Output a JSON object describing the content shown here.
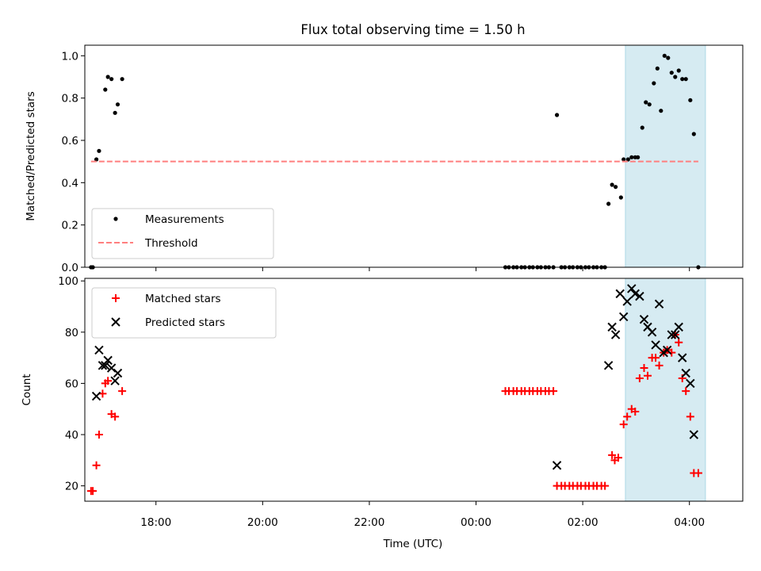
{
  "chart_data": {
    "type": "scatter",
    "title": "Flux total observing time = 1.50 h",
    "xlabel": "Time (UTC)",
    "x_ticks": [
      "18:00",
      "20:00",
      "22:00",
      "00:00",
      "02:00",
      "04:00"
    ],
    "xlim": [
      "16:40",
      "05:00"
    ],
    "highlight_span": {
      "start": "02:48",
      "end": "04:18",
      "color": "#add8e6"
    },
    "panels": [
      {
        "ylabel": "Matched/Predicted stars",
        "ylim": [
          0,
          1.05
        ],
        "y_ticks": [
          0.0,
          0.2,
          0.4,
          0.6,
          0.8,
          1.0
        ],
        "y_tick_labels": [
          "0.0",
          "0.2",
          "0.4",
          "0.6",
          "0.8",
          "1.0"
        ],
        "legend_position": "lower-left",
        "series": [
          {
            "name": "Measurements",
            "marker": "dot",
            "color": "#000000",
            "points": [
              [
                "16:47",
                0.0
              ],
              [
                "16:49",
                0.0
              ],
              [
                "16:53",
                0.51
              ],
              [
                "16:56",
                0.55
              ],
              [
                "17:03",
                0.84
              ],
              [
                "17:06",
                0.9
              ],
              [
                "17:10",
                0.89
              ],
              [
                "17:14",
                0.73
              ],
              [
                "17:17",
                0.77
              ],
              [
                "17:22",
                0.89
              ],
              [
                "00:33",
                0.0
              ],
              [
                "00:37",
                0.0
              ],
              [
                "00:42",
                0.0
              ],
              [
                "00:46",
                0.0
              ],
              [
                "00:51",
                0.0
              ],
              [
                "00:55",
                0.0
              ],
              [
                "01:00",
                0.0
              ],
              [
                "01:04",
                0.0
              ],
              [
                "01:09",
                0.0
              ],
              [
                "01:13",
                0.0
              ],
              [
                "01:18",
                0.0
              ],
              [
                "01:22",
                0.0
              ],
              [
                "01:27",
                0.0
              ],
              [
                "01:31",
                0.72
              ],
              [
                "01:36",
                0.0
              ],
              [
                "01:40",
                0.0
              ],
              [
                "01:45",
                0.0
              ],
              [
                "01:49",
                0.0
              ],
              [
                "01:54",
                0.0
              ],
              [
                "01:58",
                0.0
              ],
              [
                "02:03",
                0.0
              ],
              [
                "02:07",
                0.0
              ],
              [
                "02:12",
                0.0
              ],
              [
                "02:16",
                0.0
              ],
              [
                "02:21",
                0.0
              ],
              [
                "02:25",
                0.0
              ],
              [
                "02:29",
                0.3
              ],
              [
                "02:33",
                0.39
              ],
              [
                "02:37",
                0.38
              ],
              [
                "02:43",
                0.33
              ],
              [
                "02:46",
                0.51
              ],
              [
                "02:51",
                0.51
              ],
              [
                "02:55",
                0.52
              ],
              [
                "02:59",
                0.52
              ],
              [
                "03:02",
                0.52
              ],
              [
                "03:07",
                0.66
              ],
              [
                "03:11",
                0.78
              ],
              [
                "03:15",
                0.77
              ],
              [
                "03:20",
                0.87
              ],
              [
                "03:24",
                0.94
              ],
              [
                "03:28",
                0.74
              ],
              [
                "03:32",
                1.0
              ],
              [
                "03:36",
                0.99
              ],
              [
                "03:40",
                0.92
              ],
              [
                "03:44",
                0.9
              ],
              [
                "03:48",
                0.93
              ],
              [
                "03:52",
                0.89
              ],
              [
                "03:56",
                0.89
              ],
              [
                "04:01",
                0.79
              ],
              [
                "04:05",
                0.63
              ],
              [
                "04:10",
                0.0
              ]
            ]
          },
          {
            "name": "Threshold",
            "marker": "dashed-line",
            "color": "#ff7f7f",
            "points": [
              [
                "16:47",
                0.5
              ],
              [
                "04:10",
                0.5
              ]
            ]
          }
        ]
      },
      {
        "ylabel": "Count",
        "ylim": [
          14,
          101
        ],
        "y_ticks": [
          20,
          40,
          60,
          80,
          100
        ],
        "y_tick_labels": [
          "20",
          "40",
          "60",
          "80",
          "100"
        ],
        "legend_position": "upper-left",
        "series": [
          {
            "name": "Matched stars",
            "marker": "plus",
            "color": "#ff0000",
            "points": [
              [
                "16:47",
                18
              ],
              [
                "16:49",
                18
              ],
              [
                "16:53",
                28
              ],
              [
                "16:56",
                40
              ],
              [
                "17:00",
                56
              ],
              [
                "17:03",
                60
              ],
              [
                "17:06",
                61
              ],
              [
                "17:10",
                48
              ],
              [
                "17:14",
                47
              ],
              [
                "17:22",
                57
              ],
              [
                "00:33",
                57
              ],
              [
                "00:37",
                57
              ],
              [
                "00:42",
                57
              ],
              [
                "00:46",
                57
              ],
              [
                "00:51",
                57
              ],
              [
                "00:55",
                57
              ],
              [
                "01:00",
                57
              ],
              [
                "01:04",
                57
              ],
              [
                "01:09",
                57
              ],
              [
                "01:13",
                57
              ],
              [
                "01:18",
                57
              ],
              [
                "01:22",
                57
              ],
              [
                "01:27",
                57
              ],
              [
                "01:31",
                20
              ],
              [
                "01:36",
                20
              ],
              [
                "01:40",
                20
              ],
              [
                "01:45",
                20
              ],
              [
                "01:49",
                20
              ],
              [
                "01:54",
                20
              ],
              [
                "01:58",
                20
              ],
              [
                "02:03",
                20
              ],
              [
                "02:07",
                20
              ],
              [
                "02:12",
                20
              ],
              [
                "02:16",
                20
              ],
              [
                "02:21",
                20
              ],
              [
                "02:25",
                20
              ],
              [
                "02:33",
                32
              ],
              [
                "02:36",
                30
              ],
              [
                "02:40",
                31
              ],
              [
                "02:46",
                44
              ],
              [
                "02:50",
                47
              ],
              [
                "02:55",
                50
              ],
              [
                "02:59",
                49
              ],
              [
                "03:04",
                62
              ],
              [
                "03:09",
                66
              ],
              [
                "03:13",
                63
              ],
              [
                "03:18",
                70
              ],
              [
                "03:22",
                70
              ],
              [
                "03:26",
                67
              ],
              [
                "03:31",
                72
              ],
              [
                "03:35",
                73
              ],
              [
                "03:40",
                72
              ],
              [
                "03:44",
                79
              ],
              [
                "03:48",
                76
              ],
              [
                "03:52",
                62
              ],
              [
                "03:56",
                57
              ],
              [
                "04:01",
                47
              ],
              [
                "04:05",
                25
              ],
              [
                "04:10",
                25
              ]
            ]
          },
          {
            "name": "Predicted stars",
            "marker": "x",
            "color": "#000000",
            "points": [
              [
                "16:53",
                55
              ],
              [
                "16:56",
                73
              ],
              [
                "17:00",
                67
              ],
              [
                "17:03",
                67
              ],
              [
                "17:06",
                69
              ],
              [
                "17:10",
                66
              ],
              [
                "17:14",
                61
              ],
              [
                "17:17",
                64
              ],
              [
                "01:31",
                28
              ],
              [
                "02:29",
                67
              ],
              [
                "02:33",
                82
              ],
              [
                "02:37",
                79
              ],
              [
                "02:42",
                95
              ],
              [
                "02:46",
                86
              ],
              [
                "02:50",
                92
              ],
              [
                "02:55",
                97
              ],
              [
                "02:59",
                95
              ],
              [
                "03:04",
                94
              ],
              [
                "03:09",
                85
              ],
              [
                "03:13",
                82
              ],
              [
                "03:18",
                80
              ],
              [
                "03:22",
                75
              ],
              [
                "03:26",
                91
              ],
              [
                "03:31",
                72
              ],
              [
                "03:35",
                73
              ],
              [
                "03:40",
                79
              ],
              [
                "03:44",
                79
              ],
              [
                "03:48",
                82
              ],
              [
                "03:52",
                70
              ],
              [
                "03:56",
                64
              ],
              [
                "04:01",
                60
              ],
              [
                "04:05",
                40
              ]
            ]
          }
        ]
      }
    ]
  }
}
